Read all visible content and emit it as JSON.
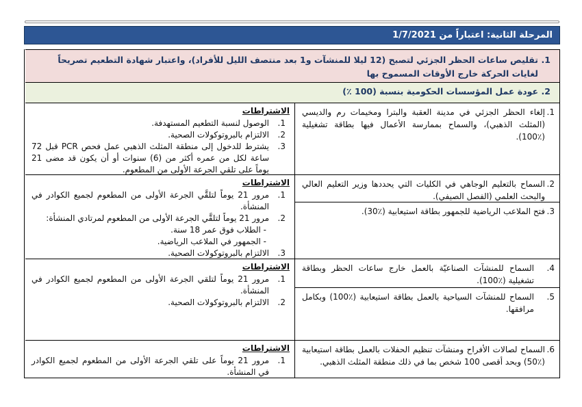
{
  "colors": {
    "header_bg": "#2d5694",
    "header_border": "#17365c",
    "row1_bg": "#f2dcdb",
    "row2_bg": "#ebf1de",
    "summary_text": "#1f3864",
    "grid_border": "#000000"
  },
  "header": {
    "title_line": "المرحلة الثانية: اعتباراً من  1/7/2021"
  },
  "summary_rows": [
    {
      "number": "1.",
      "text": "تقليص ساعات الحظر الجزئي لتصبح (12 ليلا للمنشآت و1 بعد منتصف الليل للأفراد)، واعتبار شهادة التطعيم تصريحاً لغايات الحركة خارج الأوقات المسموح بها"
    },
    {
      "number": "2.",
      "text": "عودة عمل المؤسسات الحكومية بنسبة (100 ٪)"
    }
  ],
  "main_items": [
    {
      "number": "1.",
      "text": "إلغاء الحظر الجزئي في مدينة العقبة والبترا ومخيمات رم والديسي (المثلث الذهبي)، والسماح بممارسة الأعمال فيها بطاقة تشغيلية (٪100)."
    },
    {
      "number": "2.",
      "text": "السماح بالتعليم الوجاهي في الكليات التي يحددها وزير التعليم العالي والبحث العلمي (الفصل الصيفي)."
    },
    {
      "number": "3.",
      "text": "فتح الملاعب الرياضية للجمهور بطاقة استيعابية (٪30)."
    },
    {
      "number": "4.",
      "text": "السماح للمنشآت الصناعيّة بالعمل خارج ساعات الحظر وبطاقة تشغيلية (٪100)."
    },
    {
      "number": "5.",
      "text": "السماح للمنشآت السياحية بالعمل بطاقة استيعابية (٪100) وبكامل مرافقها."
    },
    {
      "number": "6.",
      "text": "السماح لصالات الأفراح ومنشآت تنظيم الحفلات بالعمل بطاقة استيعابية (٪50) وبحد أقصى 100 شخص بما في ذلك منطقة المثلث الذهبي."
    }
  ],
  "condition_blocks": [
    {
      "title": "الاشتراطات",
      "items": [
        {
          "number": "1.",
          "text": "الوصول لنسبة التطعيم المستهدفة."
        },
        {
          "number": "2.",
          "text": "الالتزام بالبروتوكولات الصحية."
        },
        {
          "number": "3.",
          "text": "يشترط للدخول إلى منطقة المثلث الذهبي عمل فحص PCR قبل 72 ساعة لكل من عمره أكثر من (6) سنوات أو أن يكون قد مضى 21 يوماً على تلقي الجرعة الأولى من المطعوم."
        }
      ]
    },
    {
      "title": "الاشتراطات",
      "items": [
        {
          "number": "1.",
          "text": "مرور 21 يوماً لتلقَّي الجرعة الأولى من المطعوم لجميع الكوادر في المنشأة."
        },
        {
          "number": "2.",
          "text": "مرور 21 يوماً لتلقَّي الجرعة الأولى من المطعوم لمرتادي المنشأة:",
          "sub": [
            "- الطلاب فوق عمر 18 سنة.",
            "- الجمهور في الملاعب الرياضية."
          ]
        },
        {
          "number": "3.",
          "text": "الالتزام بالبروتوكولات الصحية."
        }
      ]
    },
    {
      "title": "الاشتراطات",
      "items": [
        {
          "number": "1.",
          "text": "مرور 21 يوماً لتلقي الجرعة الأولى من المطعوم لجميع الكوادر في المنشأة."
        },
        {
          "number": "2.",
          "text": "الالتزام بالبروتوكولات الصحية."
        }
      ]
    },
    {
      "title": "الاشتراطات",
      "items": [
        {
          "number": "1.",
          "text": "مرور 21 يوماً على تلقي الجرعة الأولى من المطعوم لجميع الكوادر في المنشأة."
        }
      ]
    }
  ]
}
